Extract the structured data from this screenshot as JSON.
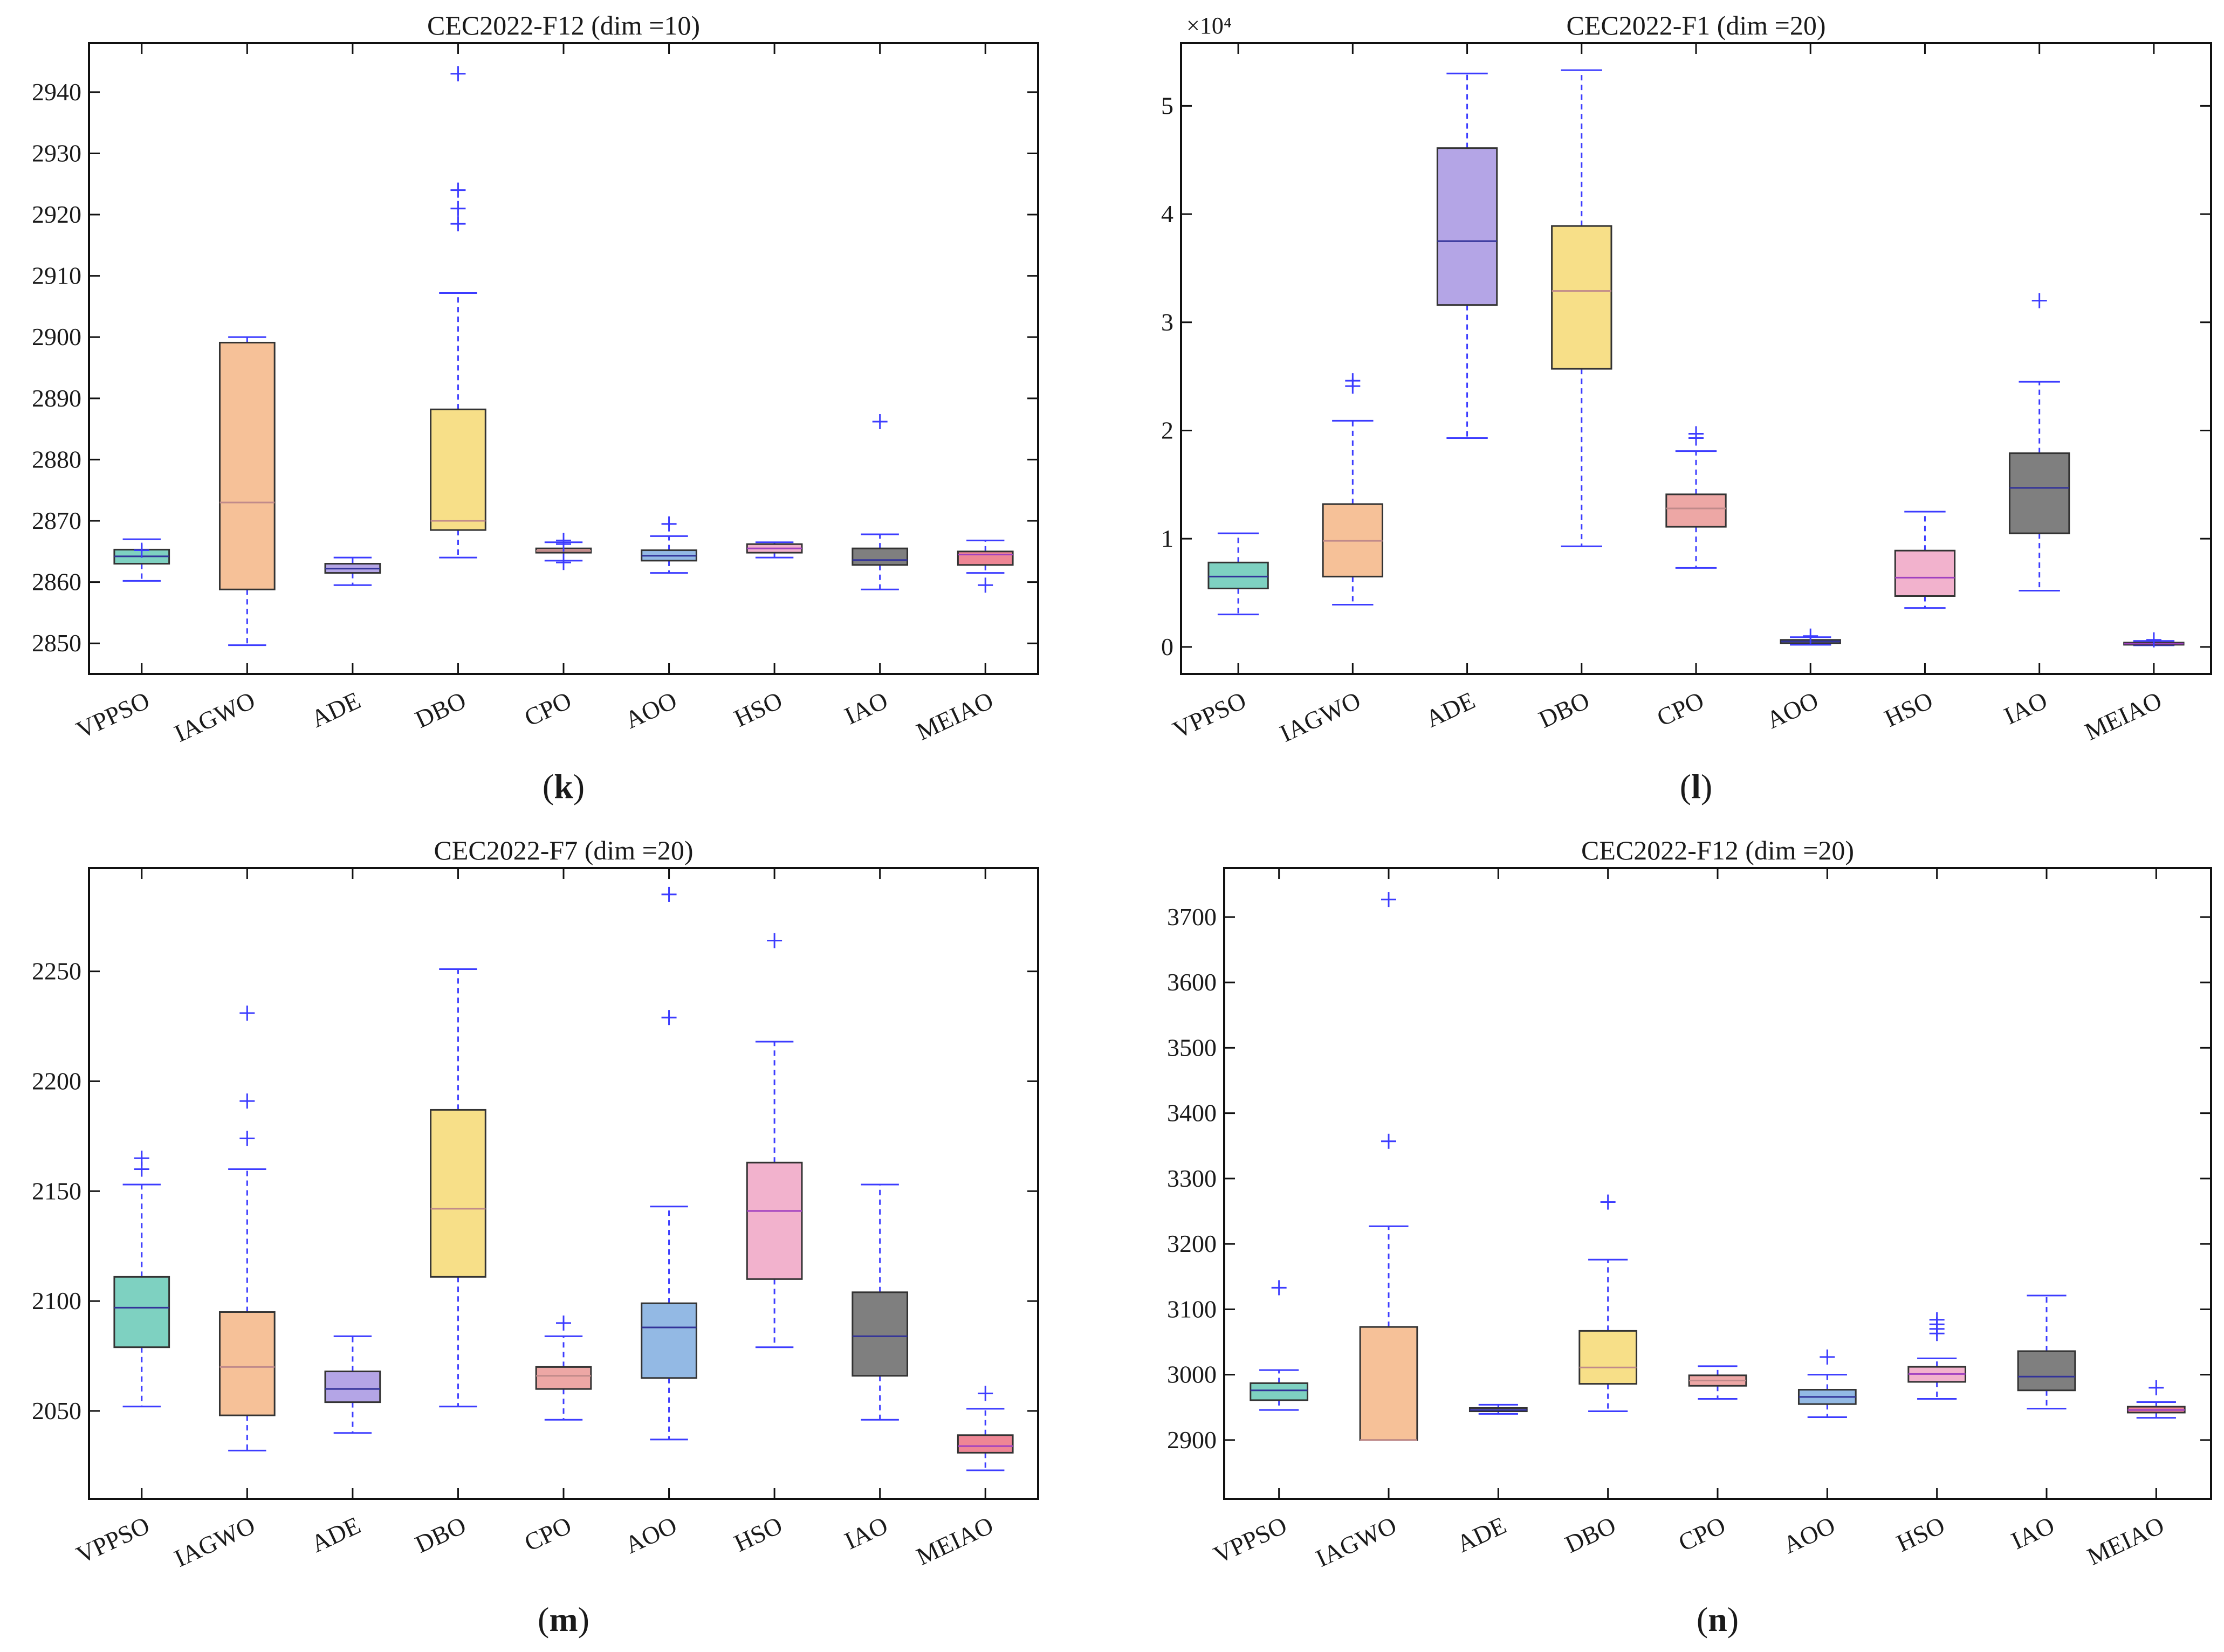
{
  "colors": {
    "VPPSO": "#7ed1c1",
    "IAGWO": "#f6c198",
    "ADE": "#b4a5e6",
    "DBO": "#f7df88",
    "CPO": "#eda7a5",
    "AOO": "#93b9e4",
    "HSO": "#f2b2cd",
    "IAO": "#7f7f7f",
    "MEIAO": "#ee8695",
    "whisker": "#3c3cff",
    "median_dark": "#333399",
    "median_light": "#c8a0a0",
    "axis": "#111111"
  },
  "chart_data": [
    {
      "id": "k",
      "type": "box",
      "title": "CEC2022-F12 (dim =10)",
      "panel_label": "k",
      "categories": [
        "VPPSO",
        "IAGWO",
        "ADE",
        "DBO",
        "CPO",
        "AOO",
        "HSO",
        "IAO",
        "MEIAO"
      ],
      "ylim": [
        2845,
        2948
      ],
      "yticks": [
        2850,
        2860,
        2870,
        2880,
        2890,
        2900,
        2910,
        2920,
        2930,
        2940
      ],
      "ytick_labels": [
        "2850",
        "2860",
        "2870",
        "2880",
        "2890",
        "2900",
        "2910",
        "2920",
        "2930",
        "2940"
      ],
      "exponent_label": "",
      "boxes": [
        {
          "name": "VPPSO",
          "whisker_low": 2860.2,
          "q1": 2863.0,
          "median": 2864.2,
          "q3": 2865.3,
          "whisker_high": 2867.0,
          "outliers": [
            2865.2
          ]
        },
        {
          "name": "IAGWO",
          "whisker_low": 2849.7,
          "q1": 2858.8,
          "median": 2873.0,
          "q3": 2899.1,
          "whisker_high": 2900.0,
          "outliers": []
        },
        {
          "name": "ADE",
          "whisker_low": 2859.5,
          "q1": 2861.5,
          "median": 2862.2,
          "q3": 2863.0,
          "whisker_high": 2864.0,
          "outliers": []
        },
        {
          "name": "DBO",
          "whisker_low": 2864.0,
          "q1": 2868.5,
          "median": 2870.0,
          "q3": 2888.2,
          "whisker_high": 2907.2,
          "outliers": [
            2943.0,
            2924.0,
            2921.0,
            2918.5
          ]
        },
        {
          "name": "CPO",
          "whisker_low": 2863.5,
          "q1": 2864.8,
          "median": 2865.1,
          "q3": 2865.5,
          "whisker_high": 2866.5,
          "outliers": [
            2866.2,
            2863.2,
            2866.8
          ]
        },
        {
          "name": "AOO",
          "whisker_low": 2861.5,
          "q1": 2863.5,
          "median": 2864.3,
          "q3": 2865.2,
          "whisker_high": 2867.5,
          "outliers": [
            2869.5
          ]
        },
        {
          "name": "HSO",
          "whisker_low": 2864.0,
          "q1": 2864.8,
          "median": 2865.5,
          "q3": 2866.2,
          "whisker_high": 2866.5,
          "outliers": []
        },
        {
          "name": "IAO",
          "whisker_low": 2858.8,
          "q1": 2862.8,
          "median": 2863.6,
          "q3": 2865.5,
          "whisker_high": 2867.8,
          "outliers": [
            2886.2
          ]
        },
        {
          "name": "MEIAO",
          "whisker_low": 2861.5,
          "q1": 2862.8,
          "median": 2864.5,
          "q3": 2865.0,
          "whisker_high": 2866.8,
          "outliers": [
            2859.5
          ]
        }
      ]
    },
    {
      "id": "l",
      "type": "box",
      "title": "CEC2022-F1 (dim =20)",
      "panel_label": "l",
      "categories": [
        "VPPSO",
        "IAGWO",
        "ADE",
        "DBO",
        "CPO",
        "AOO",
        "HSO",
        "IAO",
        "MEIAO"
      ],
      "ylim": [
        -2500,
        55800
      ],
      "yticks": [
        0,
        10000,
        20000,
        30000,
        40000,
        50000
      ],
      "ytick_labels": [
        "0",
        "1",
        "2",
        "3",
        "4",
        "5"
      ],
      "exponent_label": "×10⁴",
      "boxes": [
        {
          "name": "VPPSO",
          "whisker_low": 3000,
          "q1": 5400,
          "median": 6500,
          "q3": 7800,
          "whisker_high": 10500,
          "outliers": []
        },
        {
          "name": "IAGWO",
          "whisker_low": 3900,
          "q1": 6500,
          "median": 9800,
          "q3": 13200,
          "whisker_high": 20900,
          "outliers": [
            24100,
            24600
          ]
        },
        {
          "name": "ADE",
          "whisker_low": 19300,
          "q1": 31600,
          "median": 37500,
          "q3": 46100,
          "whisker_high": 53000,
          "outliers": []
        },
        {
          "name": "DBO",
          "whisker_low": 9300,
          "q1": 25700,
          "median": 32900,
          "q3": 38900,
          "whisker_high": 53300,
          "outliers": []
        },
        {
          "name": "CPO",
          "whisker_low": 7300,
          "q1": 11100,
          "median": 12800,
          "q3": 14100,
          "whisker_high": 18100,
          "outliers": [
            19300,
            19700
          ]
        },
        {
          "name": "AOO",
          "whisker_low": 200,
          "q1": 350,
          "median": 500,
          "q3": 650,
          "whisker_high": 900,
          "outliers": [
            1000
          ]
        },
        {
          "name": "HSO",
          "whisker_low": 3600,
          "q1": 4700,
          "median": 6400,
          "q3": 8900,
          "whisker_high": 12500,
          "outliers": []
        },
        {
          "name": "IAO",
          "whisker_low": 5200,
          "q1": 10500,
          "median": 14700,
          "q3": 17900,
          "whisker_high": 24500,
          "outliers": [
            32000
          ]
        },
        {
          "name": "MEIAO",
          "whisker_low": 150,
          "q1": 250,
          "median": 300,
          "q3": 400,
          "whisker_high": 550,
          "outliers": [
            650
          ]
        }
      ]
    },
    {
      "id": "m",
      "type": "box",
      "title": "CEC2022-F7 (dim =20)",
      "panel_label": "m",
      "categories": [
        "VPPSO",
        "IAGWO",
        "ADE",
        "DBO",
        "CPO",
        "AOO",
        "HSO",
        "IAO",
        "MEIAO"
      ],
      "ylim": [
        2010,
        2297
      ],
      "yticks": [
        2050,
        2100,
        2150,
        2200,
        2250
      ],
      "ytick_labels": [
        "2050",
        "2100",
        "2150",
        "2200",
        "2250"
      ],
      "exponent_label": "",
      "boxes": [
        {
          "name": "VPPSO",
          "whisker_low": 2052,
          "q1": 2079,
          "median": 2097,
          "q3": 2111,
          "whisker_high": 2153,
          "outliers": [
            2160,
            2165
          ]
        },
        {
          "name": "IAGWO",
          "whisker_low": 2032,
          "q1": 2048,
          "median": 2070,
          "q3": 2095,
          "whisker_high": 2160,
          "outliers": [
            2174,
            2191,
            2231
          ]
        },
        {
          "name": "ADE",
          "whisker_low": 2040,
          "q1": 2054,
          "median": 2060,
          "q3": 2068,
          "whisker_high": 2084,
          "outliers": []
        },
        {
          "name": "DBO",
          "whisker_low": 2052,
          "q1": 2111,
          "median": 2142,
          "q3": 2187,
          "whisker_high": 2251,
          "outliers": []
        },
        {
          "name": "CPO",
          "whisker_low": 2046,
          "q1": 2060,
          "median": 2066,
          "q3": 2070,
          "whisker_high": 2084,
          "outliers": [
            2090
          ]
        },
        {
          "name": "AOO",
          "whisker_low": 2037,
          "q1": 2065,
          "median": 2088,
          "q3": 2099,
          "whisker_high": 2143,
          "outliers": [
            2229,
            2285
          ]
        },
        {
          "name": "HSO",
          "whisker_low": 2079,
          "q1": 2110,
          "median": 2141,
          "q3": 2163,
          "whisker_high": 2218,
          "outliers": [
            2264
          ]
        },
        {
          "name": "IAO",
          "whisker_low": 2046,
          "q1": 2066,
          "median": 2084,
          "q3": 2104,
          "whisker_high": 2153,
          "outliers": []
        },
        {
          "name": "MEIAO",
          "whisker_low": 2023,
          "q1": 2031,
          "median": 2034,
          "q3": 2039,
          "whisker_high": 2051,
          "outliers": [
            2058
          ]
        }
      ]
    },
    {
      "id": "n",
      "type": "box",
      "title": "CEC2022-F12 (dim =20)",
      "panel_label": "n",
      "categories": [
        "VPPSO",
        "IAGWO",
        "ADE",
        "DBO",
        "CPO",
        "AOO",
        "HSO",
        "IAO",
        "MEIAO"
      ],
      "ylim": [
        2810,
        3775
      ],
      "yticks": [
        2900,
        3000,
        3100,
        3200,
        3300,
        3400,
        3500,
        3600,
        3700
      ],
      "ytick_labels": [
        "2900",
        "3000",
        "3100",
        "3200",
        "3300",
        "3400",
        "3500",
        "3600",
        "3700"
      ],
      "exponent_label": "",
      "boxes": [
        {
          "name": "VPPSO",
          "whisker_low": 2946,
          "q1": 2961,
          "median": 2976,
          "q3": 2987,
          "whisker_high": 3007,
          "outliers": [
            3133
          ]
        },
        {
          "name": "IAGWO",
          "whisker_low": 2900,
          "q1": 2900,
          "median": 2900,
          "q3": 3073,
          "whisker_high": 3227,
          "outliers": [
            3357,
            3727
          ]
        },
        {
          "name": "ADE",
          "whisker_low": 2940,
          "q1": 2944,
          "median": 2946,
          "q3": 2949,
          "whisker_high": 2954,
          "outliers": []
        },
        {
          "name": "DBO",
          "whisker_low": 2944,
          "q1": 2986,
          "median": 3011,
          "q3": 3067,
          "whisker_high": 3176,
          "outliers": [
            3264
          ]
        },
        {
          "name": "CPO",
          "whisker_low": 2963,
          "q1": 2983,
          "median": 2991,
          "q3": 2999,
          "whisker_high": 3013,
          "outliers": []
        },
        {
          "name": "AOO",
          "whisker_low": 2935,
          "q1": 2955,
          "median": 2966,
          "q3": 2977,
          "whisker_high": 3000,
          "outliers": [
            3027
          ]
        },
        {
          "name": "HSO",
          "whisker_low": 2963,
          "q1": 2989,
          "median": 3001,
          "q3": 3012,
          "whisker_high": 3025,
          "outliers": [
            3063,
            3070,
            3077,
            3084
          ]
        },
        {
          "name": "IAO",
          "whisker_low": 2948,
          "q1": 2976,
          "median": 2997,
          "q3": 3036,
          "whisker_high": 3121,
          "outliers": []
        },
        {
          "name": "MEIAO",
          "whisker_low": 2934,
          "q1": 2942,
          "median": 2946,
          "q3": 2951,
          "whisker_high": 2958,
          "outliers": [
            2980
          ]
        }
      ]
    }
  ]
}
